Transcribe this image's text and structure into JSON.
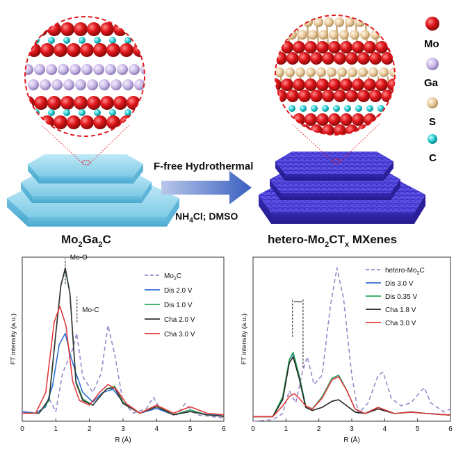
{
  "legend_atoms": [
    {
      "label": "Mo",
      "color": "#e0161b"
    },
    {
      "label": "Ga",
      "color": "#c9b8e4"
    },
    {
      "label": "S",
      "color": "#e7c99b"
    },
    {
      "label": "C",
      "color": "#22c7cf"
    }
  ],
  "arrow": {
    "top_label": "F-free Hydrothermal",
    "bottom_label": "NH4Cl; DMSO",
    "bottom_parts": {
      "a": "NH",
      "sub": "4",
      "b": "Cl; DMSO"
    }
  },
  "left_material": {
    "parts": {
      "a": "Mo",
      "s1": "2",
      "b": "Ga",
      "s2": "2",
      "c": "C"
    },
    "label": "Mo2Ga2C"
  },
  "right_material": {
    "parts": {
      "a": "hetero-Mo",
      "s1": "2",
      "b": "CT",
      "s2": "x",
      "c": " MXenes"
    },
    "label": "hetero-Mo2CTx MXenes"
  },
  "chart_data": [
    {
      "type": "line",
      "xlabel": "R (Å)",
      "ylabel": "FT intensity (a.u.)",
      "xlim": [
        0,
        6
      ],
      "xticks": [
        0,
        1,
        2,
        3,
        4,
        5,
        6
      ],
      "annotations": [
        "Mo-O",
        "Mo-C"
      ],
      "series": [
        {
          "name": "Mo2C",
          "color": "#9a86c9",
          "dash": true,
          "points": [
            [
              0,
              0.06
            ],
            [
              0.5,
              0.05
            ],
            [
              0.8,
              0.14
            ],
            [
              1.0,
              0.06
            ],
            [
              1.2,
              0.3
            ],
            [
              1.5,
              0.45
            ],
            [
              1.62,
              0.55
            ],
            [
              1.8,
              0.28
            ],
            [
              2.1,
              0.18
            ],
            [
              2.35,
              0.3
            ],
            [
              2.55,
              0.6
            ],
            [
              2.75,
              0.42
            ],
            [
              3.0,
              0.12
            ],
            [
              3.3,
              0.05
            ],
            [
              3.7,
              0.08
            ],
            [
              3.9,
              0.15
            ],
            [
              4.1,
              0.08
            ],
            [
              4.6,
              0.04
            ],
            [
              4.85,
              0.11
            ],
            [
              5.2,
              0.04
            ],
            [
              6.0,
              0.02
            ]
          ]
        },
        {
          "name": "Dis  2.0 V",
          "color": "#2f6fd6",
          "points": [
            [
              0,
              0.06
            ],
            [
              0.4,
              0.05
            ],
            [
              0.7,
              0.09
            ],
            [
              0.9,
              0.22
            ],
            [
              1.1,
              0.48
            ],
            [
              1.28,
              0.55
            ],
            [
              1.45,
              0.4
            ],
            [
              1.6,
              0.3
            ],
            [
              1.8,
              0.18
            ],
            [
              2.1,
              0.12
            ],
            [
              2.4,
              0.18
            ],
            [
              2.7,
              0.2
            ],
            [
              3.0,
              0.12
            ],
            [
              3.5,
              0.05
            ],
            [
              4.0,
              0.08
            ],
            [
              4.5,
              0.04
            ],
            [
              5.0,
              0.07
            ],
            [
              5.5,
              0.04
            ],
            [
              6.0,
              0.04
            ]
          ]
        },
        {
          "name": "Dis  1.0 V",
          "color": "#2aa85a",
          "points": [
            [
              0,
              0.05
            ],
            [
              0.5,
              0.05
            ],
            [
              0.8,
              0.13
            ],
            [
              1.0,
              0.55
            ],
            [
              1.15,
              0.85
            ],
            [
              1.28,
              0.95
            ],
            [
              1.42,
              0.8
            ],
            [
              1.6,
              0.25
            ],
            [
              1.8,
              0.14
            ],
            [
              2.1,
              0.1
            ],
            [
              2.5,
              0.2
            ],
            [
              2.75,
              0.22
            ],
            [
              3.0,
              0.12
            ],
            [
              3.5,
              0.05
            ],
            [
              4.0,
              0.1
            ],
            [
              4.5,
              0.04
            ],
            [
              5.0,
              0.07
            ],
            [
              5.5,
              0.04
            ],
            [
              6.0,
              0.03
            ]
          ]
        },
        {
          "name": "Cha 2.0 V",
          "color": "#333333",
          "points": [
            [
              0,
              0.05
            ],
            [
              0.5,
              0.05
            ],
            [
              0.8,
              0.14
            ],
            [
              1.0,
              0.55
            ],
            [
              1.15,
              0.85
            ],
            [
              1.28,
              0.96
            ],
            [
              1.42,
              0.8
            ],
            [
              1.6,
              0.24
            ],
            [
              1.8,
              0.13
            ],
            [
              2.1,
              0.1
            ],
            [
              2.5,
              0.2
            ],
            [
              2.75,
              0.21
            ],
            [
              3.0,
              0.11
            ],
            [
              3.5,
              0.05
            ],
            [
              4.0,
              0.09
            ],
            [
              4.5,
              0.04
            ],
            [
              5.0,
              0.06
            ],
            [
              5.5,
              0.04
            ],
            [
              6.0,
              0.03
            ]
          ]
        },
        {
          "name": "Cha 3.0 V",
          "color": "#e23b3b",
          "points": [
            [
              0,
              0.05
            ],
            [
              0.4,
              0.05
            ],
            [
              0.7,
              0.18
            ],
            [
              0.95,
              0.62
            ],
            [
              1.12,
              0.72
            ],
            [
              1.3,
              0.6
            ],
            [
              1.5,
              0.25
            ],
            [
              1.7,
              0.13
            ],
            [
              2.0,
              0.1
            ],
            [
              2.3,
              0.18
            ],
            [
              2.55,
              0.23
            ],
            [
              2.8,
              0.2
            ],
            [
              3.1,
              0.11
            ],
            [
              3.5,
              0.05
            ],
            [
              4.0,
              0.1
            ],
            [
              4.5,
              0.05
            ],
            [
              5.0,
              0.09
            ],
            [
              5.5,
              0.05
            ],
            [
              6.0,
              0.04
            ]
          ]
        }
      ]
    },
    {
      "type": "line",
      "xlabel": "R (Å)",
      "ylabel": "FT intensity (a.u.)",
      "xlim": [
        0,
        6
      ],
      "xticks": [
        0,
        1,
        2,
        3,
        4,
        5,
        6
      ],
      "annotations": [],
      "series": [
        {
          "name": "hetero-Mo2C",
          "color": "#9a86c9",
          "dash": true,
          "points": [
            [
              0,
              0.0
            ],
            [
              0.6,
              0.01
            ],
            [
              0.9,
              0.05
            ],
            [
              1.1,
              0.2
            ],
            [
              1.3,
              0.12
            ],
            [
              1.5,
              0.32
            ],
            [
              1.65,
              0.42
            ],
            [
              1.85,
              0.24
            ],
            [
              2.1,
              0.3
            ],
            [
              2.35,
              0.75
            ],
            [
              2.55,
              1.0
            ],
            [
              2.75,
              0.8
            ],
            [
              3.0,
              0.3
            ],
            [
              3.2,
              0.05
            ],
            [
              3.5,
              0.12
            ],
            [
              3.8,
              0.3
            ],
            [
              3.95,
              0.32
            ],
            [
              4.2,
              0.15
            ],
            [
              4.5,
              0.1
            ],
            [
              4.8,
              0.12
            ],
            [
              5.2,
              0.22
            ],
            [
              5.4,
              0.12
            ],
            [
              5.8,
              0.06
            ],
            [
              6.0,
              0.08
            ]
          ]
        },
        {
          "name": "Dis 3.0 V",
          "color": "#2f6fd6",
          "points": [
            [
              0,
              0.03
            ],
            [
              0.6,
              0.03
            ],
            [
              0.9,
              0.15
            ],
            [
              1.1,
              0.4
            ],
            [
              1.22,
              0.44
            ],
            [
              1.4,
              0.3
            ],
            [
              1.6,
              0.1
            ],
            [
              1.8,
              0.08
            ],
            [
              2.1,
              0.16
            ],
            [
              2.4,
              0.28
            ],
            [
              2.6,
              0.3
            ],
            [
              2.85,
              0.2
            ],
            [
              3.1,
              0.08
            ],
            [
              3.4,
              0.05
            ],
            [
              3.8,
              0.09
            ],
            [
              4.3,
              0.05
            ],
            [
              4.8,
              0.06
            ],
            [
              5.3,
              0.05
            ],
            [
              6.0,
              0.04
            ]
          ]
        },
        {
          "name": "Dis 0.35 V",
          "color": "#2aa85a",
          "points": [
            [
              0,
              0.03
            ],
            [
              0.6,
              0.03
            ],
            [
              0.9,
              0.16
            ],
            [
              1.1,
              0.4
            ],
            [
              1.22,
              0.45
            ],
            [
              1.4,
              0.3
            ],
            [
              1.6,
              0.1
            ],
            [
              1.8,
              0.08
            ],
            [
              2.1,
              0.16
            ],
            [
              2.4,
              0.28
            ],
            [
              2.6,
              0.3
            ],
            [
              2.85,
              0.2
            ],
            [
              3.1,
              0.08
            ],
            [
              3.4,
              0.05
            ],
            [
              3.8,
              0.09
            ],
            [
              4.3,
              0.05
            ],
            [
              4.8,
              0.06
            ],
            [
              5.3,
              0.05
            ],
            [
              6.0,
              0.04
            ]
          ]
        },
        {
          "name": "Cha 1.8 V",
          "color": "#222222",
          "points": [
            [
              0,
              0.03
            ],
            [
              0.6,
              0.03
            ],
            [
              0.9,
              0.14
            ],
            [
              1.1,
              0.38
            ],
            [
              1.22,
              0.42
            ],
            [
              1.4,
              0.28
            ],
            [
              1.6,
              0.09
            ],
            [
              1.8,
              0.07
            ],
            [
              2.1,
              0.09
            ],
            [
              2.4,
              0.13
            ],
            [
              2.6,
              0.14
            ],
            [
              2.85,
              0.1
            ],
            [
              3.1,
              0.06
            ],
            [
              3.4,
              0.05
            ],
            [
              3.8,
              0.08
            ],
            [
              4.3,
              0.05
            ],
            [
              4.8,
              0.06
            ],
            [
              5.3,
              0.05
            ],
            [
              6.0,
              0.04
            ]
          ]
        },
        {
          "name": "Cha 3.0 V",
          "color": "#e23b3b",
          "points": [
            [
              0,
              0.03
            ],
            [
              0.6,
              0.03
            ],
            [
              0.9,
              0.1
            ],
            [
              1.1,
              0.16
            ],
            [
              1.25,
              0.18
            ],
            [
              1.4,
              0.15
            ],
            [
              1.6,
              0.1
            ],
            [
              1.8,
              0.08
            ],
            [
              2.1,
              0.15
            ],
            [
              2.4,
              0.27
            ],
            [
              2.6,
              0.29
            ],
            [
              2.85,
              0.2
            ],
            [
              3.1,
              0.08
            ],
            [
              3.4,
              0.05
            ],
            [
              3.8,
              0.09
            ],
            [
              4.3,
              0.05
            ],
            [
              4.8,
              0.06
            ],
            [
              5.3,
              0.05
            ],
            [
              6.0,
              0.04
            ]
          ]
        }
      ]
    }
  ]
}
